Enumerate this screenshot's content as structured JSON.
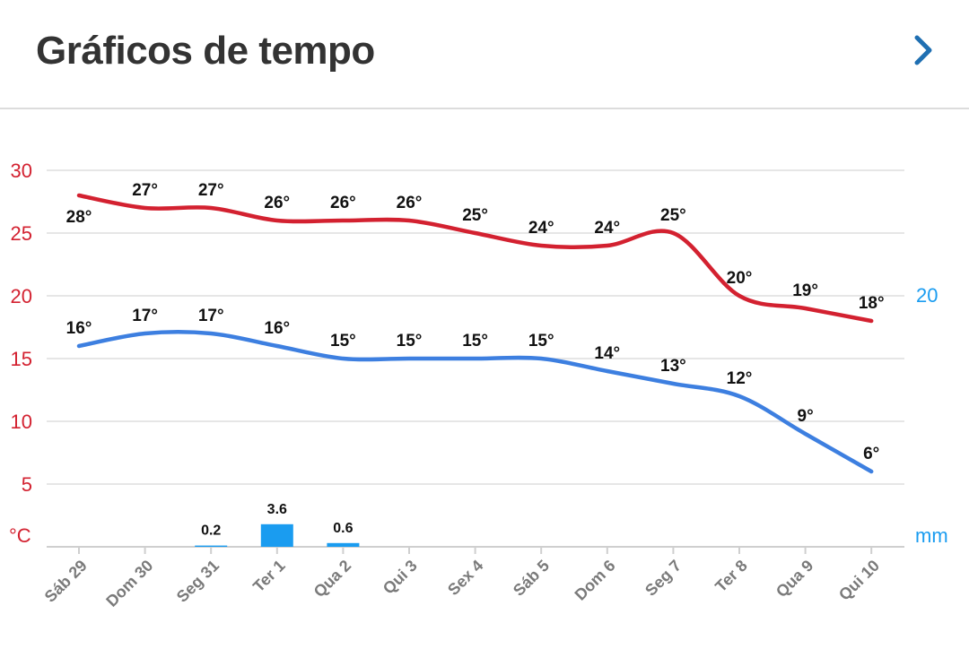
{
  "header": {
    "title": "Gráficos de tempo"
  },
  "chart_data": {
    "type": "line",
    "categories": [
      "Sáb 29",
      "Dom 30",
      "Seg 31",
      "Ter 1",
      "Qua 2",
      "Qui 3",
      "Sex 4",
      "Sáb 5",
      "Dom 6",
      "Seg 7",
      "Ter 8",
      "Qua 9",
      "Qui 10"
    ],
    "series": [
      {
        "values": [
          28,
          27,
          27,
          26,
          26,
          26,
          25,
          24,
          24,
          25,
          20,
          19,
          18
        ],
        "labels": [
          "28°",
          "27°",
          "27°",
          "26°",
          "26°",
          "26°",
          "25°",
          "24°",
          "24°",
          "25°",
          "20°",
          "19°",
          "18°"
        ],
        "color": "#d32130"
      },
      {
        "values": [
          16,
          17,
          17,
          16,
          15,
          15,
          15,
          15,
          14,
          13,
          12,
          9,
          6
        ],
        "labels": [
          "16°",
          "17°",
          "17°",
          "16°",
          "15°",
          "15°",
          "15°",
          "15°",
          "14°",
          "13°",
          "12°",
          "9°",
          "6°"
        ],
        "color": "#3d7fe0"
      }
    ],
    "precipitation": {
      "values": [
        0,
        0,
        0.2,
        3.6,
        0.6,
        0,
        0,
        0,
        0,
        0,
        0,
        0,
        0
      ],
      "labels": {
        "2": "0.2",
        "3": "3.6",
        "4": "0.6"
      },
      "color": "#1a9cf0"
    },
    "y_left": {
      "ticks": [
        "30",
        "25",
        "20",
        "15",
        "10",
        "5"
      ],
      "unit": "°C",
      "color": "#d32130",
      "range": [
        0,
        30
      ]
    },
    "y_right": {
      "ticks": [
        "20"
      ],
      "unit": "mm",
      "color": "#1a9cf0",
      "range": [
        0,
        20
      ]
    },
    "grid": true
  }
}
